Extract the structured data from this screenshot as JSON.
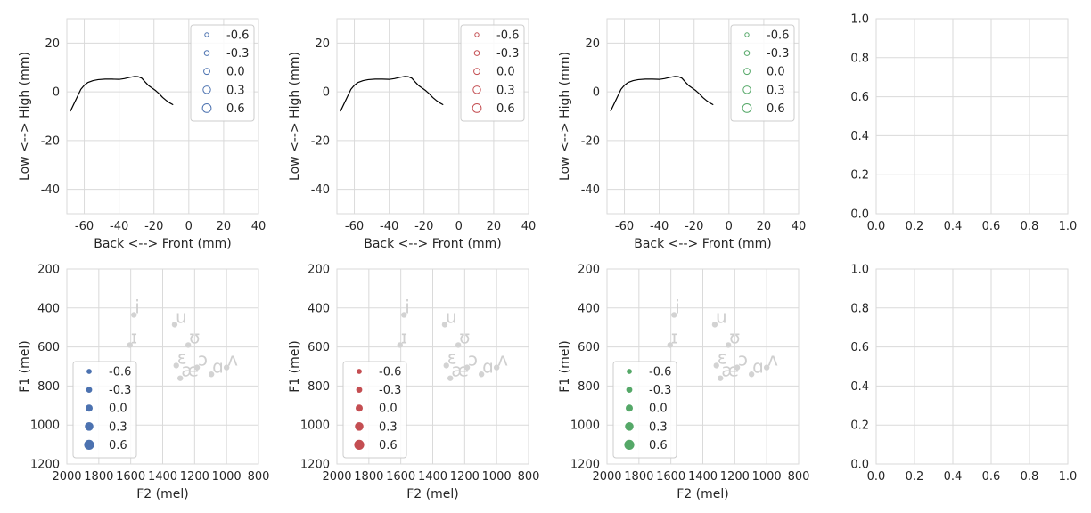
{
  "chart_data": [
    {
      "id": "tongue-blue",
      "type": "line",
      "xlabel": "Back <--> Front (mm)",
      "ylabel": "Low <--> High (mm)",
      "xlim": [
        -70,
        40
      ],
      "ylim": [
        -50,
        30
      ],
      "xticks": [
        -60,
        -40,
        -20,
        0,
        20,
        40
      ],
      "yticks": [
        20,
        0,
        -20,
        -40
      ],
      "grid": true,
      "line_color": "#000000",
      "series": [
        {
          "x": [
            -68,
            -66,
            -64,
            -62,
            -60,
            -58,
            -55,
            -52,
            -48,
            -44,
            -40,
            -37,
            -34,
            -31,
            -29,
            -27,
            -25,
            -23,
            -21,
            -19,
            -17,
            -15,
            -13,
            -11,
            -9
          ],
          "y": [
            -8,
            -5,
            -2,
            1,
            2.7,
            3.8,
            4.6,
            5,
            5.2,
            5.2,
            5.1,
            5.4,
            5.9,
            6.3,
            6.2,
            5.6,
            4,
            2.5,
            1.5,
            0.5,
            -0.8,
            -2.3,
            -3.5,
            -4.5,
            -5.3
          ]
        }
      ],
      "legend": {
        "position": "upper-right",
        "style": "open-circle",
        "color": "#4c72b0",
        "entries": [
          "-0.6",
          "-0.3",
          "0.0",
          "0.3",
          "0.6"
        ]
      }
    },
    {
      "id": "tongue-red",
      "type": "line",
      "xlabel": "Back <--> Front (mm)",
      "ylabel": "Low <--> High (mm)",
      "xlim": [
        -70,
        40
      ],
      "ylim": [
        -50,
        30
      ],
      "xticks": [
        -60,
        -40,
        -20,
        0,
        20,
        40
      ],
      "yticks": [
        20,
        0,
        -20,
        -40
      ],
      "grid": true,
      "line_color": "#000000",
      "series": [
        {
          "x": [
            -68,
            -66,
            -64,
            -62,
            -60,
            -58,
            -55,
            -52,
            -48,
            -44,
            -40,
            -37,
            -34,
            -31,
            -29,
            -27,
            -25,
            -23,
            -21,
            -19,
            -17,
            -15,
            -13,
            -11,
            -9
          ],
          "y": [
            -8,
            -5,
            -2,
            1,
            2.7,
            3.8,
            4.6,
            5,
            5.2,
            5.2,
            5.1,
            5.4,
            5.9,
            6.3,
            6.2,
            5.6,
            4,
            2.5,
            1.5,
            0.5,
            -0.8,
            -2.3,
            -3.5,
            -4.5,
            -5.3
          ]
        }
      ],
      "legend": {
        "position": "upper-right",
        "style": "open-circle",
        "color": "#c44e52",
        "entries": [
          "-0.6",
          "-0.3",
          "0.0",
          "0.3",
          "0.6"
        ]
      }
    },
    {
      "id": "tongue-green",
      "type": "line",
      "xlabel": "Back <--> Front (mm)",
      "ylabel": "Low <--> High (mm)",
      "xlim": [
        -70,
        40
      ],
      "ylim": [
        -50,
        30
      ],
      "xticks": [
        -60,
        -40,
        -20,
        0,
        20,
        40
      ],
      "yticks": [
        20,
        0,
        -20,
        -40
      ],
      "grid": true,
      "line_color": "#000000",
      "series": [
        {
          "x": [
            -68,
            -66,
            -64,
            -62,
            -60,
            -58,
            -55,
            -52,
            -48,
            -44,
            -40,
            -37,
            -34,
            -31,
            -29,
            -27,
            -25,
            -23,
            -21,
            -19,
            -17,
            -15,
            -13,
            -11,
            -9
          ],
          "y": [
            -8,
            -5,
            -2,
            1,
            2.7,
            3.8,
            4.6,
            5,
            5.2,
            5.2,
            5.1,
            5.4,
            5.9,
            6.3,
            6.2,
            5.6,
            4,
            2.5,
            1.5,
            0.5,
            -0.8,
            -2.3,
            -3.5,
            -4.5,
            -5.3
          ]
        }
      ],
      "legend": {
        "position": "upper-right",
        "style": "open-circle",
        "color": "#55a868",
        "entries": [
          "-0.6",
          "-0.3",
          "0.0",
          "0.3",
          "0.6"
        ]
      }
    },
    {
      "id": "empty-top",
      "type": "scatter",
      "xlim": [
        0,
        1
      ],
      "ylim": [
        0,
        1
      ],
      "xticks": [
        "0.0",
        "0.2",
        "0.4",
        "0.6",
        "0.8",
        "1.0"
      ],
      "yticks": [
        "1.0",
        "0.8",
        "0.6",
        "0.4",
        "0.2",
        "0.0"
      ],
      "grid": true
    },
    {
      "id": "vowels-blue",
      "type": "scatter",
      "xlabel": "F2 (mel)",
      "ylabel": "F1 (mel)",
      "xlim": [
        2000,
        800
      ],
      "ylim": [
        1200,
        200
      ],
      "xticks": [
        2000,
        1800,
        1600,
        1400,
        1200,
        1000,
        800
      ],
      "yticks": [
        200,
        400,
        600,
        800,
        1000,
        1200
      ],
      "grid": true,
      "point_color": "#d3d3d3",
      "label_color": "#cfcfcf",
      "points": [
        {
          "label": "i",
          "x": 1580,
          "y": 435
        },
        {
          "label": "ɪ",
          "x": 1605,
          "y": 590
        },
        {
          "label": "u",
          "x": 1325,
          "y": 485
        },
        {
          "label": "ʊ",
          "x": 1240,
          "y": 590
        },
        {
          "label": "ɛ",
          "x": 1315,
          "y": 695
        },
        {
          "label": "æ",
          "x": 1290,
          "y": 760
        },
        {
          "label": "ɔ",
          "x": 1185,
          "y": 705
        },
        {
          "label": "ɑ",
          "x": 1095,
          "y": 740
        },
        {
          "label": "ʌ",
          "x": 1000,
          "y": 705
        }
      ],
      "legend": {
        "position": "lower-left",
        "style": "filled-circle",
        "color": "#4c72b0",
        "entries": [
          "-0.6",
          "-0.3",
          "0.0",
          "0.3",
          "0.6"
        ]
      }
    },
    {
      "id": "vowels-red",
      "type": "scatter",
      "xlabel": "F2 (mel)",
      "ylabel": "F1 (mel)",
      "xlim": [
        2000,
        800
      ],
      "ylim": [
        1200,
        200
      ],
      "xticks": [
        2000,
        1800,
        1600,
        1400,
        1200,
        1000,
        800
      ],
      "yticks": [
        200,
        400,
        600,
        800,
        1000,
        1200
      ],
      "grid": true,
      "point_color": "#d3d3d3",
      "label_color": "#cfcfcf",
      "points": [
        {
          "label": "i",
          "x": 1580,
          "y": 435
        },
        {
          "label": "ɪ",
          "x": 1605,
          "y": 590
        },
        {
          "label": "u",
          "x": 1325,
          "y": 485
        },
        {
          "label": "ʊ",
          "x": 1240,
          "y": 590
        },
        {
          "label": "ɛ",
          "x": 1315,
          "y": 695
        },
        {
          "label": "æ",
          "x": 1290,
          "y": 760
        },
        {
          "label": "ɔ",
          "x": 1185,
          "y": 705
        },
        {
          "label": "ɑ",
          "x": 1095,
          "y": 740
        },
        {
          "label": "ʌ",
          "x": 1000,
          "y": 705
        }
      ],
      "legend": {
        "position": "lower-left",
        "style": "filled-circle",
        "color": "#c44e52",
        "entries": [
          "-0.6",
          "-0.3",
          "0.0",
          "0.3",
          "0.6"
        ]
      }
    },
    {
      "id": "vowels-green",
      "type": "scatter",
      "xlabel": "F2 (mel)",
      "ylabel": "F1 (mel)",
      "xlim": [
        2000,
        800
      ],
      "ylim": [
        1200,
        200
      ],
      "xticks": [
        2000,
        1800,
        1600,
        1400,
        1200,
        1000,
        800
      ],
      "yticks": [
        200,
        400,
        600,
        800,
        1000,
        1200
      ],
      "grid": true,
      "point_color": "#d3d3d3",
      "label_color": "#cfcfcf",
      "points": [
        {
          "label": "i",
          "x": 1580,
          "y": 435
        },
        {
          "label": "ɪ",
          "x": 1605,
          "y": 590
        },
        {
          "label": "u",
          "x": 1325,
          "y": 485
        },
        {
          "label": "ʊ",
          "x": 1240,
          "y": 590
        },
        {
          "label": "ɛ",
          "x": 1315,
          "y": 695
        },
        {
          "label": "æ",
          "x": 1290,
          "y": 760
        },
        {
          "label": "ɔ",
          "x": 1185,
          "y": 705
        },
        {
          "label": "ɑ",
          "x": 1095,
          "y": 740
        },
        {
          "label": "ʌ",
          "x": 1000,
          "y": 705
        }
      ],
      "legend": {
        "position": "lower-left",
        "style": "filled-circle",
        "color": "#55a868",
        "entries": [
          "-0.6",
          "-0.3",
          "0.0",
          "0.3",
          "0.6"
        ]
      }
    },
    {
      "id": "empty-bottom",
      "type": "scatter",
      "xlim": [
        0,
        1
      ],
      "ylim": [
        0,
        1
      ],
      "xticks": [
        "0.0",
        "0.2",
        "0.4",
        "0.6",
        "0.8",
        "1.0"
      ],
      "yticks": [
        "1.0",
        "0.8",
        "0.6",
        "0.4",
        "0.2",
        "0.0"
      ],
      "grid": true
    }
  ]
}
